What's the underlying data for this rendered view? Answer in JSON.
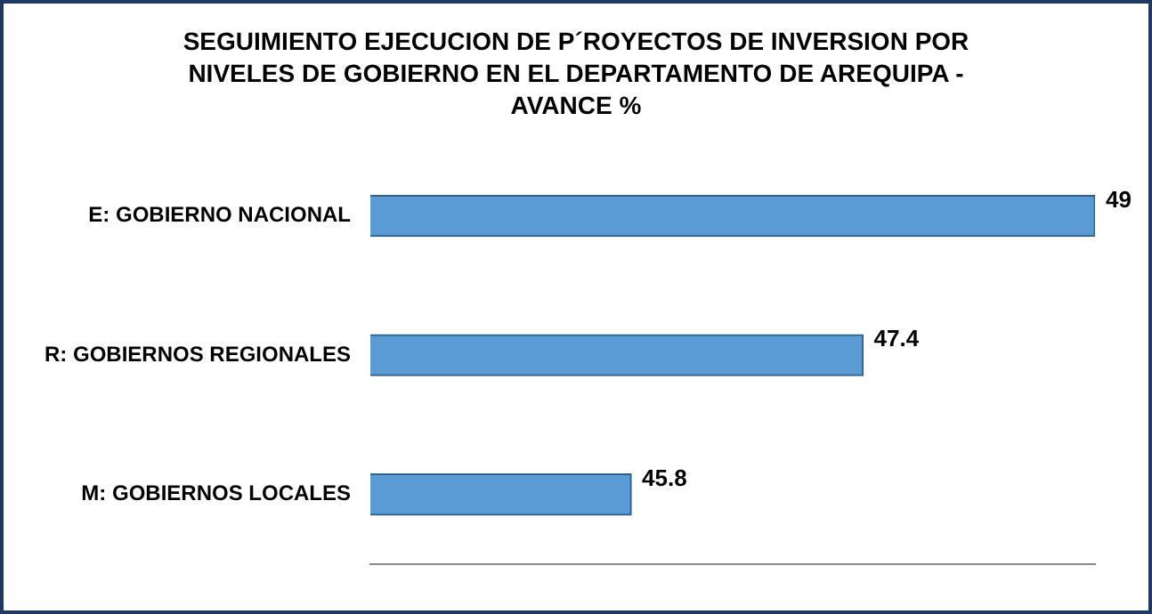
{
  "chart_data": {
    "type": "bar",
    "orientation": "horizontal",
    "title": "SEGUIMIENTO EJECUCION DE P´ROYECTOS DE INVERSION POR NIVELES DE GOBIERNO EN EL DEPARTAMENTO DE AREQUIPA - AVANCE %",
    "categories": [
      "E: GOBIERNO NACIONAL",
      "R: GOBIERNOS REGIONALES",
      "M: GOBIERNOS LOCALES"
    ],
    "values": [
      49,
      47.4,
      45.8
    ],
    "color": "#5b9bd5",
    "xlim": [
      44,
      49
    ],
    "tick_labels": "y",
    "data_labels": true,
    "legend": false
  }
}
